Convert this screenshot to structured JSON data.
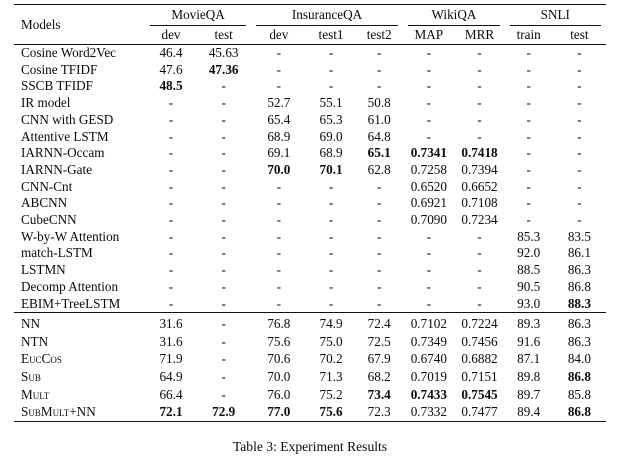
{
  "caption": "Table 3: Experiment Results",
  "colors": {
    "text": "#0a0a0a",
    "rule": "#111111",
    "background": "#ffffff"
  },
  "table": {
    "corner_label": "Models",
    "column_groups": [
      {
        "label": "MovieQA",
        "subcols": [
          "dev",
          "test"
        ]
      },
      {
        "label": "InsuranceQA",
        "subcols": [
          "dev",
          "test1",
          "test2"
        ]
      },
      {
        "label": "WikiQA",
        "subcols": [
          "MAP",
          "MRR"
        ]
      },
      {
        "label": "SNLI",
        "subcols": [
          "train",
          "test"
        ]
      }
    ],
    "sections": [
      {
        "name": "prior-work",
        "rows": [
          {
            "model": "Cosine Word2Vec",
            "sc": false,
            "values": [
              "46.4",
              "45.63",
              "-",
              "-",
              "-",
              "-",
              "-",
              "-",
              "-"
            ],
            "bold": []
          },
          {
            "model": "Cosine TFIDF",
            "sc": false,
            "values": [
              "47.6",
              "47.36",
              "-",
              "-",
              "-",
              "-",
              "-",
              "-",
              "-"
            ],
            "bold": [
              1
            ]
          },
          {
            "model": "SSCB TFIDF",
            "sc": false,
            "values": [
              "48.5",
              "-",
              "-",
              "-",
              "-",
              "-",
              "-",
              "-",
              "-"
            ],
            "bold": [
              0
            ]
          },
          {
            "model": "IR model",
            "sc": false,
            "values": [
              "-",
              "-",
              "52.7",
              "55.1",
              "50.8",
              "-",
              "-",
              "-",
              "-"
            ],
            "bold": []
          },
          {
            "model": "CNN with GESD",
            "sc": false,
            "values": [
              "-",
              "-",
              "65.4",
              "65.3",
              "61.0",
              "-",
              "-",
              "-",
              "-"
            ],
            "bold": []
          },
          {
            "model": "Attentive LSTM",
            "sc": false,
            "values": [
              "-",
              "-",
              "68.9",
              "69.0",
              "64.8",
              "-",
              "-",
              "-",
              "-"
            ],
            "bold": []
          },
          {
            "model": "IARNN-Occam",
            "sc": false,
            "values": [
              "-",
              "-",
              "69.1",
              "68.9",
              "65.1",
              "0.7341",
              "0.7418",
              "-",
              "-"
            ],
            "bold": [
              4,
              5,
              6
            ]
          },
          {
            "model": "IARNN-Gate",
            "sc": false,
            "values": [
              "-",
              "-",
              "70.0",
              "70.1",
              "62.8",
              "0.7258",
              "0.7394",
              "-",
              "-"
            ],
            "bold": [
              2,
              3
            ]
          },
          {
            "model": "CNN-Cnt",
            "sc": false,
            "values": [
              "-",
              "-",
              "-",
              "-",
              "-",
              "0.6520",
              "0.6652",
              "-",
              "-"
            ],
            "bold": []
          },
          {
            "model": "ABCNN",
            "sc": false,
            "values": [
              "-",
              "-",
              "-",
              "-",
              "-",
              "0.6921",
              "0.7108",
              "-",
              "-"
            ],
            "bold": []
          },
          {
            "model": "CubeCNN",
            "sc": false,
            "values": [
              "-",
              "-",
              "-",
              "-",
              "-",
              "0.7090",
              "0.7234",
              "-",
              "-"
            ],
            "bold": []
          },
          {
            "model": "W-by-W Attention",
            "sc": false,
            "values": [
              "-",
              "-",
              "-",
              "-",
              "-",
              "-",
              "-",
              "85.3",
              "83.5"
            ],
            "bold": []
          },
          {
            "model": "match-LSTM",
            "sc": false,
            "values": [
              "-",
              "-",
              "-",
              "-",
              "-",
              "-",
              "-",
              "92.0",
              "86.1"
            ],
            "bold": []
          },
          {
            "model": "LSTMN",
            "sc": false,
            "values": [
              "-",
              "-",
              "-",
              "-",
              "-",
              "-",
              "-",
              "88.5",
              "86.3"
            ],
            "bold": []
          },
          {
            "model": "Decomp Attention",
            "sc": false,
            "values": [
              "-",
              "-",
              "-",
              "-",
              "-",
              "-",
              "-",
              "90.5",
              "86.8"
            ],
            "bold": []
          },
          {
            "model": "EBIM+TreeLSTM",
            "sc": false,
            "values": [
              "-",
              "-",
              "-",
              "-",
              "-",
              "-",
              "-",
              "93.0",
              "88.3"
            ],
            "bold": [
              8
            ]
          }
        ]
      },
      {
        "name": "this-work",
        "rows": [
          {
            "model": "NN",
            "sc": false,
            "values": [
              "31.6",
              "-",
              "76.8",
              "74.9",
              "72.4",
              "0.7102",
              "0.7224",
              "89.3",
              "86.3"
            ],
            "bold": []
          },
          {
            "model": "NTN",
            "sc": false,
            "values": [
              "31.6",
              "-",
              "75.6",
              "75.0",
              "72.5",
              "0.7349",
              "0.7456",
              "91.6",
              "86.3"
            ],
            "bold": []
          },
          {
            "model": "EucCos",
            "sc": true,
            "values": [
              "71.9",
              "-",
              "70.6",
              "70.2",
              "67.9",
              "0.6740",
              "0.6882",
              "87.1",
              "84.0"
            ],
            "bold": []
          },
          {
            "model": "Sub",
            "sc": true,
            "values": [
              "64.9",
              "-",
              "70.0",
              "71.3",
              "68.2",
              "0.7019",
              "0.7151",
              "89.8",
              "86.8"
            ],
            "bold": [
              8
            ]
          },
          {
            "model": "Mult",
            "sc": true,
            "values": [
              "66.4",
              "-",
              "76.0",
              "75.2",
              "73.4",
              "0.7433",
              "0.7545",
              "89.7",
              "85.8"
            ],
            "bold": [
              4,
              5,
              6
            ]
          },
          {
            "model": "SubMult+NN",
            "sc": true,
            "values": [
              "72.1",
              "72.9",
              "77.0",
              "75.6",
              "72.3",
              "0.7332",
              "0.7477",
              "89.4",
              "86.8"
            ],
            "bold": [
              0,
              1,
              2,
              3,
              8
            ]
          }
        ]
      }
    ]
  }
}
